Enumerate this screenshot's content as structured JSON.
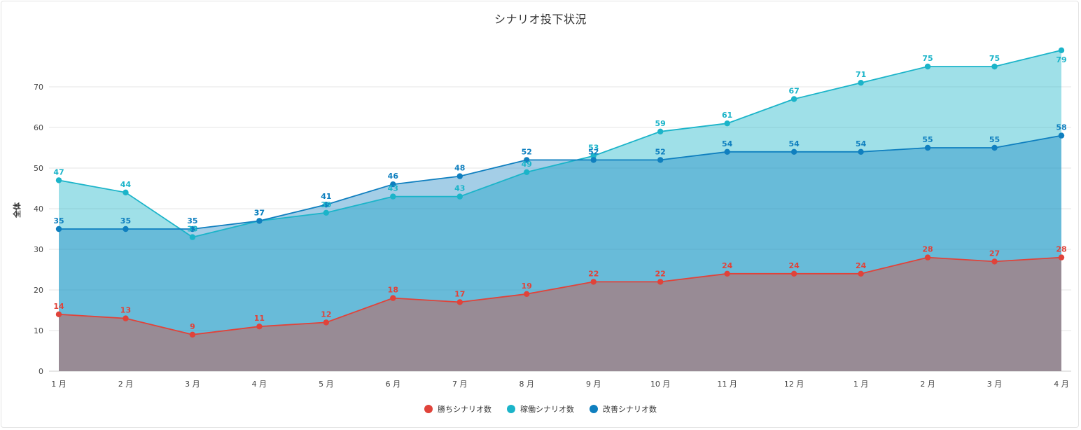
{
  "chart_data": {
    "type": "area",
    "title": "シナリオ投下状況",
    "ylabel": "全体",
    "xlabel": "",
    "ylim": [
      0,
      80
    ],
    "yticks": [
      0,
      10,
      20,
      30,
      40,
      50,
      60,
      70
    ],
    "grid": true,
    "legend_position": "bottom",
    "categories": [
      "1 月",
      "2 月",
      "3 月",
      "4 月",
      "5 月",
      "6 月",
      "7 月",
      "8 月",
      "9 月",
      "10 月",
      "11 月",
      "12 月",
      "1 月",
      "2 月",
      "3 月",
      "4 月"
    ],
    "series": [
      {
        "name": "稼働シナリオ数",
        "key": "kadou",
        "color": "#1bb4c9",
        "values": [
          47,
          44,
          33,
          37,
          39,
          43,
          43,
          49,
          53,
          59,
          61,
          67,
          71,
          75,
          75,
          79
        ]
      },
      {
        "name": "改善シナリオ数",
        "key": "kaizen",
        "color": "#0f7fbf",
        "values": [
          35,
          35,
          35,
          37,
          41,
          46,
          48,
          52,
          52,
          52,
          54,
          54,
          54,
          55,
          55,
          58
        ]
      },
      {
        "name": "勝ちシナリオ数",
        "key": "kachi",
        "color": "#e0433a",
        "values": [
          14,
          13,
          9,
          11,
          12,
          18,
          17,
          19,
          22,
          22,
          24,
          24,
          24,
          28,
          27,
          28
        ]
      }
    ]
  },
  "legend": [
    {
      "label": "勝ちシナリオ数",
      "color": "#e0433a"
    },
    {
      "label": "稼働シナリオ数",
      "color": "#1bb4c9"
    },
    {
      "label": "改善シナリオ数",
      "color": "#0f7fbf"
    }
  ]
}
